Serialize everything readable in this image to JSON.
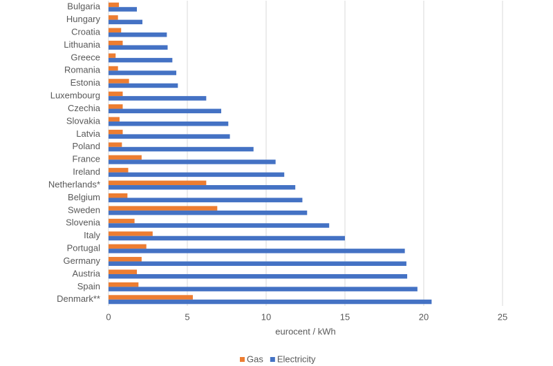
{
  "chart_data": {
    "type": "hbar",
    "categories": [
      "Bulgaria",
      "Hungary",
      "Croatia",
      "Lithuania",
      "Greece",
      "Romania",
      "Estonia",
      "Luxembourg",
      "Czechia",
      "Slovakia",
      "Latvia",
      "Poland",
      "France",
      "Ireland",
      "Netherlands*",
      "Belgium",
      "Sweden",
      "Slovenia",
      "Italy",
      "Portugal",
      "Germany",
      "Austria",
      "Spain",
      "Denmark**"
    ],
    "series": [
      {
        "name": "Gas",
        "color": "#ed7d31",
        "values": [
          0.66,
          0.6,
          0.8,
          0.9,
          0.45,
          0.6,
          1.3,
          0.9,
          0.9,
          0.7,
          0.9,
          0.85,
          2.1,
          1.25,
          6.2,
          1.2,
          6.9,
          1.65,
          2.8,
          2.4,
          2.1,
          1.8,
          1.9,
          5.35
        ]
      },
      {
        "name": "Electricity",
        "color": "#4472c4",
        "values": [
          1.8,
          2.15,
          3.7,
          3.75,
          4.05,
          4.3,
          4.4,
          6.2,
          7.15,
          7.6,
          7.7,
          9.2,
          10.6,
          11.15,
          11.85,
          12.3,
          12.6,
          14.0,
          15.0,
          18.8,
          18.9,
          18.95,
          19.6,
          20.5
        ]
      }
    ],
    "xlim": [
      0,
      25
    ],
    "xticks": [
      0,
      5,
      10,
      15,
      20,
      25
    ],
    "xlabel": "eurocent / kWh",
    "grid": true,
    "legend": "bottom"
  }
}
